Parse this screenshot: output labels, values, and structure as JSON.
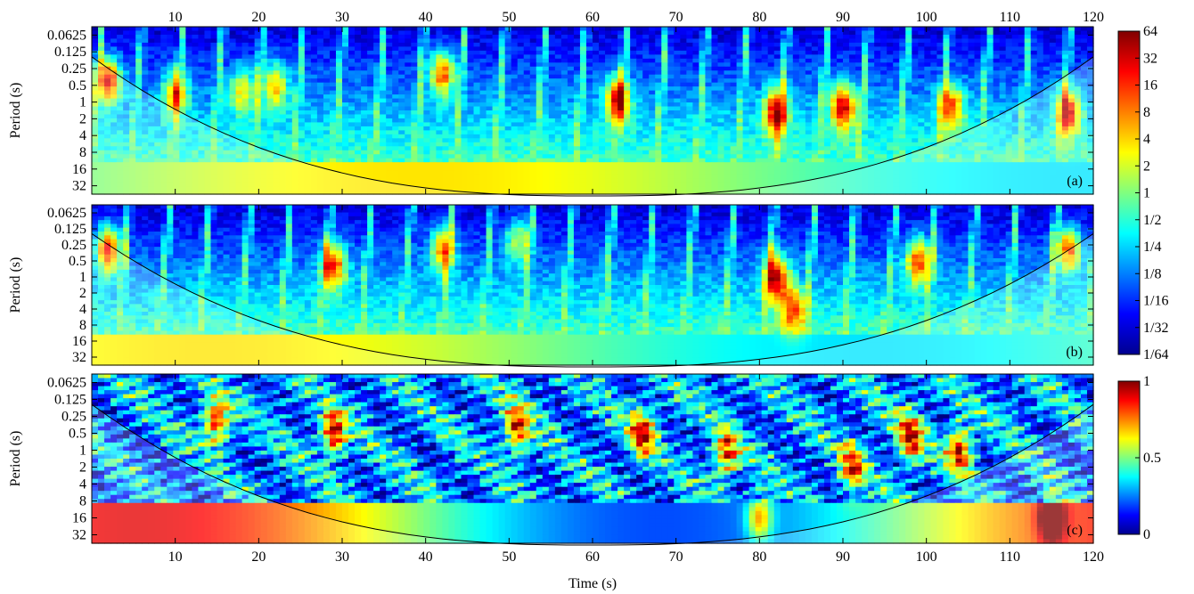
{
  "chart_data": [
    {
      "type": "heatmap",
      "panel_label": "(a)",
      "ylabel": "Period (s)",
      "xlabel": "",
      "xlim": [
        0,
        120
      ],
      "x_ticks": [
        10,
        20,
        30,
        40,
        50,
        60,
        70,
        80,
        90,
        100,
        110,
        120
      ],
      "x_tick_labels_position": "top",
      "y_ticks": [
        "0.0625",
        "0.125",
        "0.25",
        "0.5",
        "1",
        "2",
        "4",
        "8",
        "16",
        "32"
      ],
      "y_scale": "log2",
      "colorbar": "jet",
      "hotspots": [
        {
          "x": 2,
          "period": 0.4,
          "level": 1.0
        },
        {
          "x": 10,
          "period": 0.7,
          "level": 0.7
        },
        {
          "x": 18,
          "period": 0.6,
          "level": 0.6
        },
        {
          "x": 22,
          "period": 0.5,
          "level": 0.7
        },
        {
          "x": 42,
          "period": 0.3,
          "level": 0.9
        },
        {
          "x": 63,
          "period": 0.9,
          "level": 1.0
        },
        {
          "x": 82,
          "period": 1.5,
          "level": 1.0
        },
        {
          "x": 90,
          "period": 1.2,
          "level": 1.0
        },
        {
          "x": 103,
          "period": 1.2,
          "level": 0.8
        },
        {
          "x": 117,
          "period": 1.5,
          "level": 0.9
        }
      ]
    },
    {
      "type": "heatmap",
      "panel_label": "(b)",
      "ylabel": "Period (s)",
      "xlabel": "",
      "xlim": [
        0,
        120
      ],
      "x_ticks": [
        10,
        20,
        30,
        40,
        50,
        60,
        70,
        80,
        90,
        100,
        110,
        120
      ],
      "y_ticks": [
        "0.0625",
        "0.125",
        "0.25",
        "0.5",
        "1",
        "2",
        "4",
        "8",
        "16",
        "32"
      ],
      "y_scale": "log2",
      "colorbar": "jet",
      "hotspots": [
        {
          "x": 2,
          "period": 0.3,
          "level": 1.0
        },
        {
          "x": 29,
          "period": 0.6,
          "level": 0.9
        },
        {
          "x": 42,
          "period": 0.3,
          "level": 0.8
        },
        {
          "x": 51,
          "period": 0.2,
          "level": 0.6
        },
        {
          "x": 82,
          "period": 1.0,
          "level": 1.0
        },
        {
          "x": 84,
          "period": 4.0,
          "level": 0.7
        },
        {
          "x": 99,
          "period": 0.5,
          "level": 0.9
        },
        {
          "x": 117,
          "period": 0.3,
          "level": 0.9
        }
      ]
    },
    {
      "type": "heatmap",
      "panel_label": "(c)",
      "ylabel": "Period (s)",
      "xlabel": "Time (s)",
      "xlim": [
        0,
        120
      ],
      "x_ticks": [
        10,
        20,
        30,
        40,
        50,
        60,
        70,
        80,
        90,
        100,
        110,
        120
      ],
      "y_ticks": [
        "0.0625",
        "0.125",
        "0.25",
        "0.5",
        "1",
        "2",
        "4",
        "8",
        "16",
        "32"
      ],
      "y_scale": "log2",
      "colorbar": "jet",
      "hotspots": [
        {
          "x": 15,
          "period": 0.3,
          "level": 1.0
        },
        {
          "x": 29,
          "period": 0.5,
          "level": 1.0
        },
        {
          "x": 51,
          "period": 0.4,
          "level": 1.0
        },
        {
          "x": 66,
          "period": 0.5,
          "level": 0.9
        },
        {
          "x": 76,
          "period": 1.2,
          "level": 0.9
        },
        {
          "x": 91,
          "period": 2.0,
          "level": 0.8
        },
        {
          "x": 98,
          "period": 0.6,
          "level": 1.0
        },
        {
          "x": 104,
          "period": 1.0,
          "level": 1.0
        },
        {
          "x": 80,
          "period": 16,
          "level": 0.7
        },
        {
          "x": 115,
          "period": 16,
          "level": 0.8
        }
      ]
    }
  ],
  "colorbars": [
    {
      "labels": [
        "64",
        "32",
        "16",
        "8",
        "4",
        "2",
        "1",
        "1/2",
        "1/4",
        "1/8",
        "1/16",
        "1/32",
        "1/64"
      ]
    },
    {
      "labels": [
        "1",
        "0.5",
        "0"
      ]
    }
  ]
}
